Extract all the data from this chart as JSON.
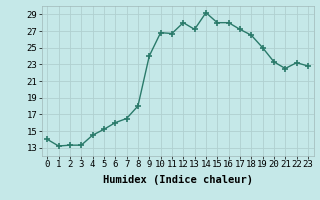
{
  "x": [
    0,
    1,
    2,
    3,
    4,
    5,
    6,
    7,
    8,
    9,
    10,
    11,
    12,
    13,
    14,
    15,
    16,
    17,
    18,
    19,
    20,
    21,
    22,
    23
  ],
  "y": [
    14.0,
    13.2,
    13.3,
    13.3,
    14.5,
    15.2,
    16.0,
    16.5,
    18.0,
    24.0,
    26.8,
    26.7,
    28.0,
    27.2,
    29.2,
    28.0,
    28.0,
    27.2,
    26.5,
    25.0,
    23.3,
    22.5,
    23.2,
    22.8
  ],
  "line_color": "#2a7a6a",
  "marker": "+",
  "marker_size": 4,
  "marker_lw": 1.2,
  "bg_color": "#c5e8e8",
  "grid_color": "#b0d0d0",
  "xlabel": "Humidex (Indice chaleur)",
  "xlim": [
    -0.5,
    23.5
  ],
  "ylim": [
    12,
    30
  ],
  "yticks": [
    13,
    15,
    17,
    19,
    21,
    23,
    25,
    27,
    29
  ],
  "xtick_labels": [
    "0",
    "1",
    "2",
    "3",
    "4",
    "5",
    "6",
    "7",
    "8",
    "9",
    "10",
    "11",
    "12",
    "13",
    "14",
    "15",
    "16",
    "17",
    "18",
    "19",
    "20",
    "21",
    "22",
    "23"
  ],
  "xlabel_fontsize": 7.5,
  "tick_fontsize": 6.5,
  "line_width": 1.0
}
